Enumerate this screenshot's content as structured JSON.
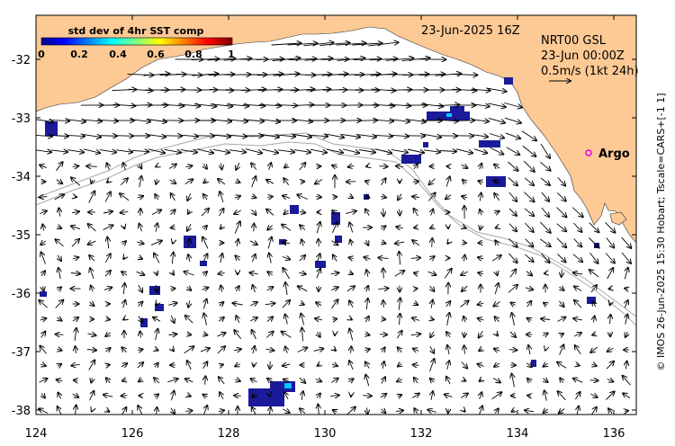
{
  "map": {
    "date_label": "23-Jun-2025 16Z",
    "info_lines": [
      "NRT00 GSL",
      "23-Jun 00:00Z",
      "0.5m/s (1kt 24h)"
    ],
    "argo_label": "Argo",
    "credit": "© IMOS 26-Jun-2025 15:30 Hobart; Tscale=CARS+[-1 1]",
    "colorbar": {
      "title": "std dev of 4hr SST comp",
      "ticks": [
        "0",
        "0.2",
        "0.4",
        "0.6",
        "0.8",
        "1"
      ]
    },
    "lon_ticks": [
      "124",
      "126",
      "128",
      "130",
      "132",
      "134",
      "136"
    ],
    "lat_ticks": [
      "-32",
      "-33",
      "-34",
      "-35",
      "-36",
      "-37",
      "-38"
    ],
    "colors": {
      "land": "#fdc995",
      "ocean": "#ffffff",
      "sst_blob": "#1a1a9a",
      "bathymetry": "#a8a8a8",
      "argo_marker": "#e000e0"
    }
  }
}
